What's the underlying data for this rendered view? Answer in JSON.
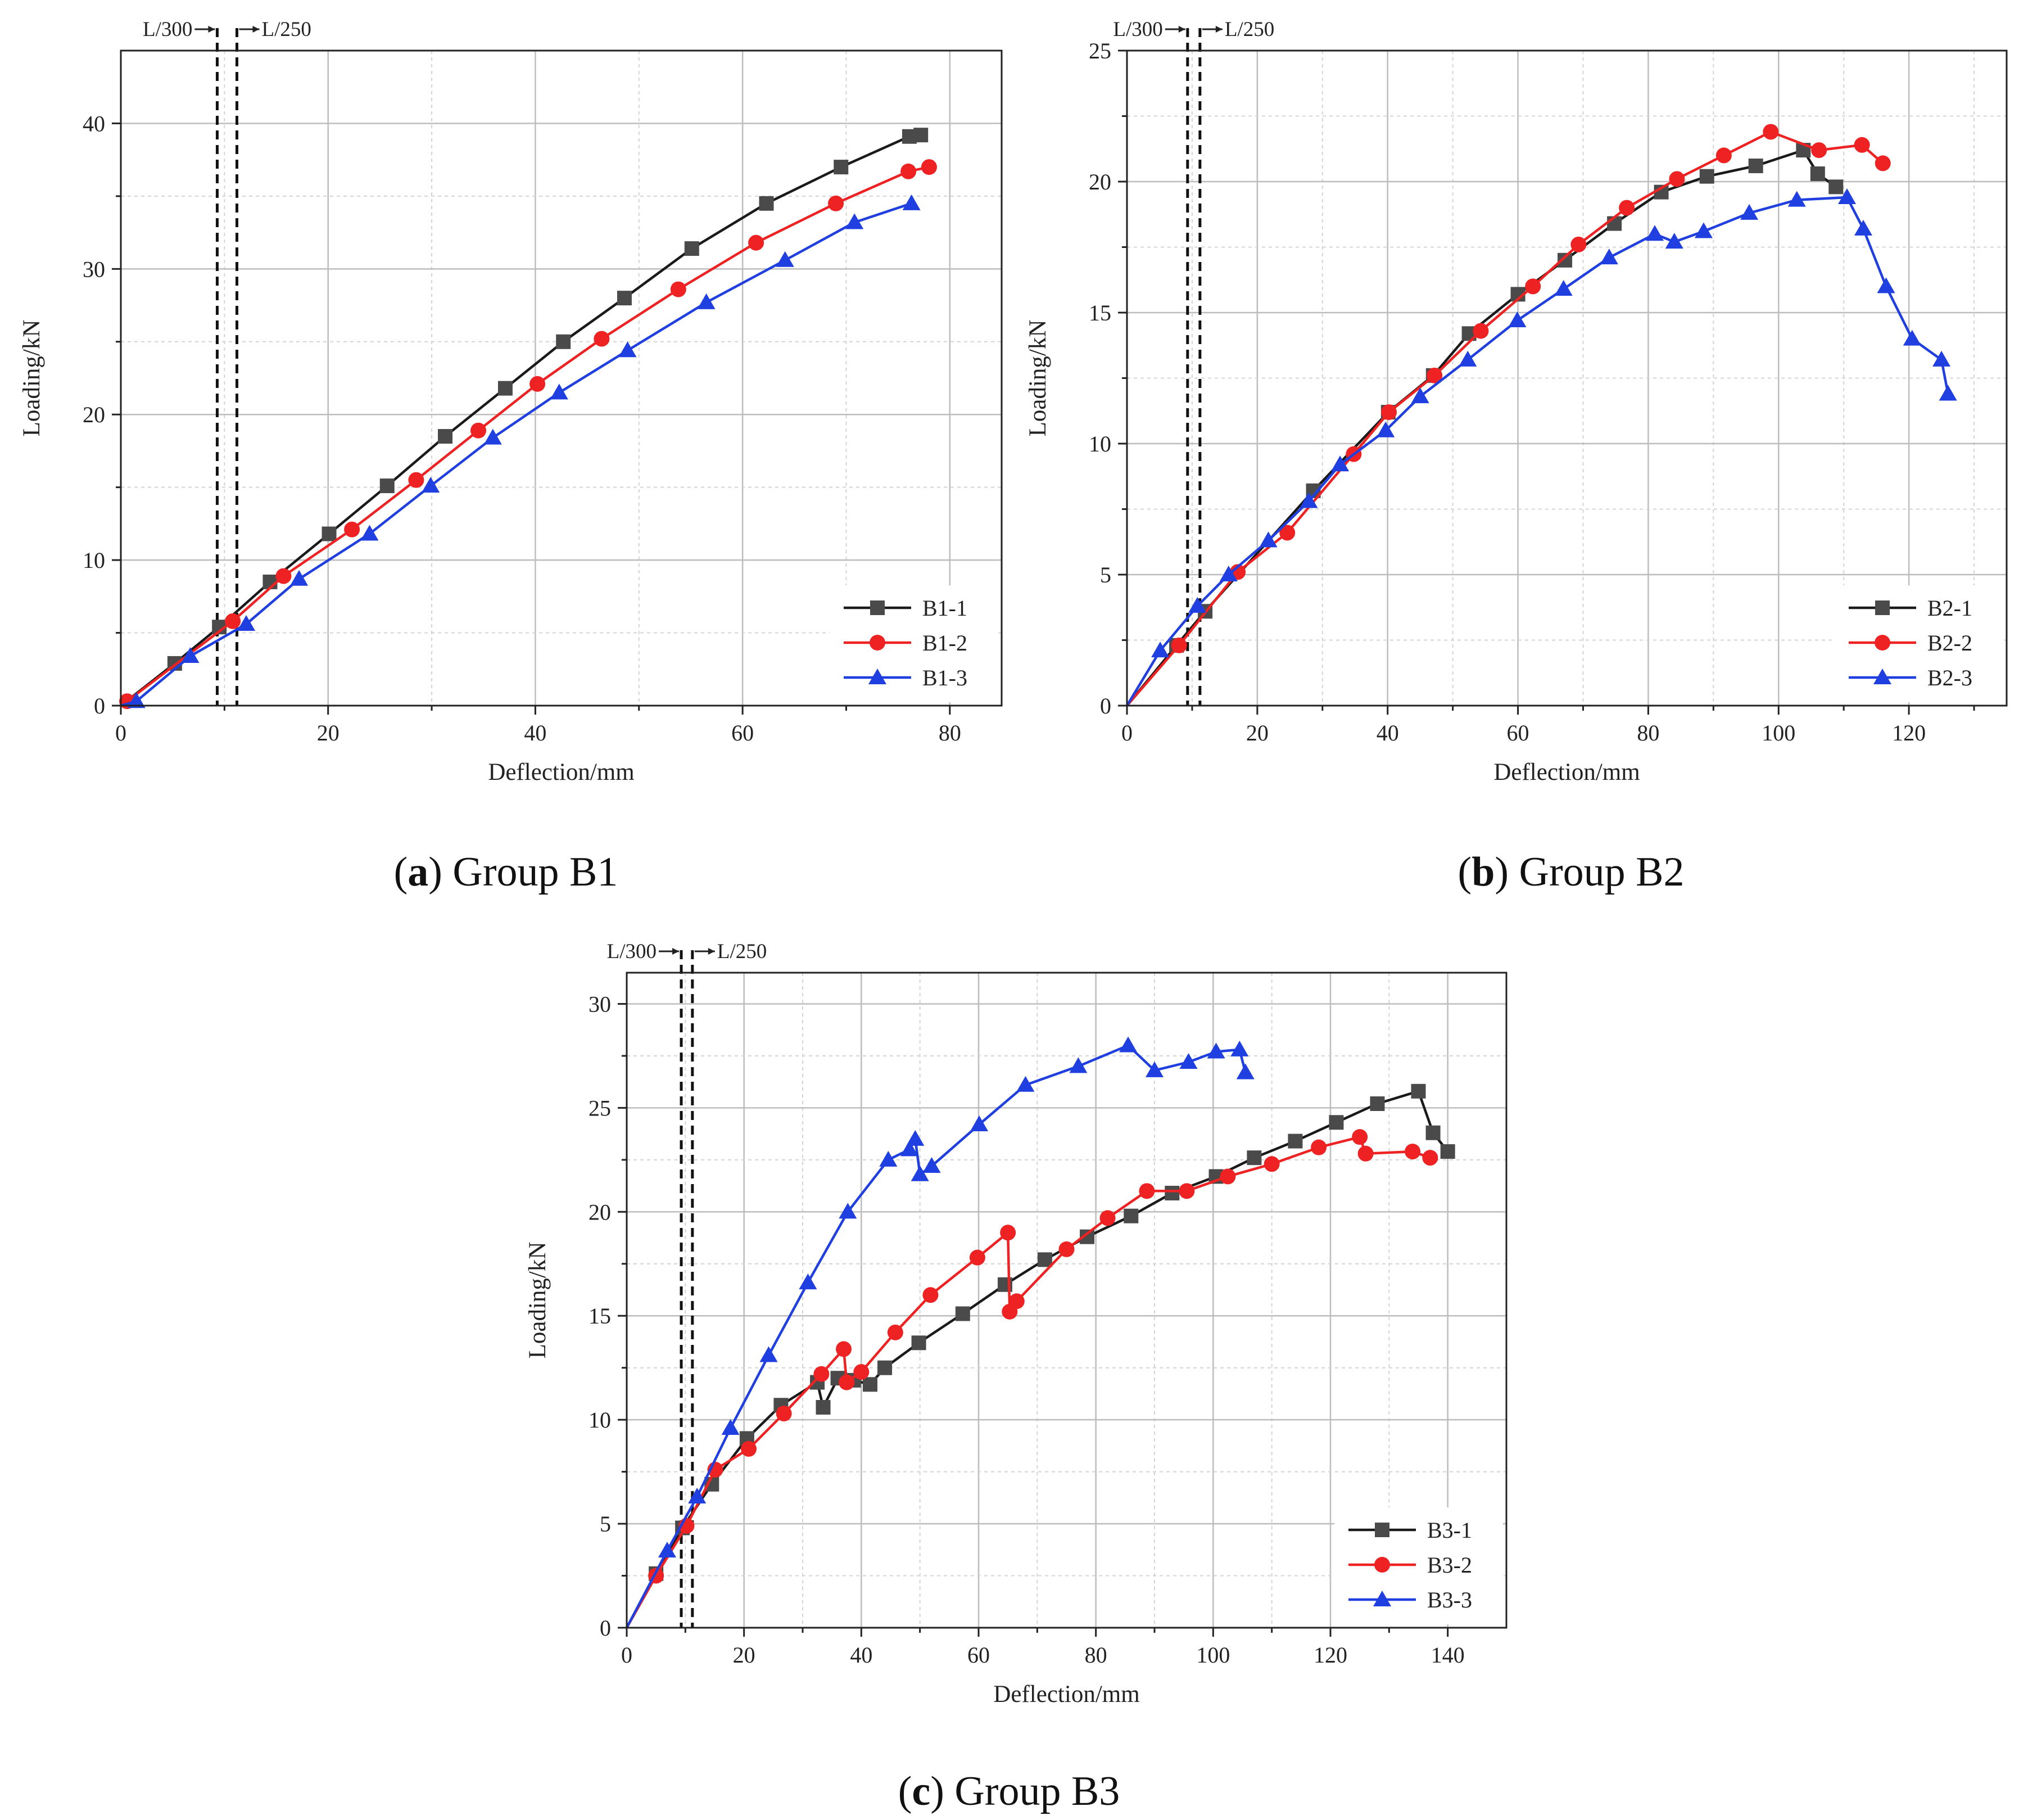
{
  "figure": {
    "colors": {
      "black": "#1a1a1a",
      "red": "#ee2222",
      "blue": "#1f3fe0",
      "marker_black": "#4a4a4a",
      "grid": "#bdbdbd"
    },
    "limit_labels": {
      "l300": "L/300",
      "l250": "L/250"
    },
    "marker_names": [
      "square",
      "circle",
      "triangle"
    ]
  },
  "chart_data": [
    {
      "type": "line",
      "id": "b1",
      "caption_letter": "a",
      "caption_text": " Group B1",
      "xlabel": "Deflection/mm",
      "ylabel": "Loading/kN",
      "xlim": [
        0,
        85
      ],
      "ylim": [
        0,
        45
      ],
      "xticks": [
        0,
        20,
        40,
        60,
        80
      ],
      "yticks": [
        0,
        10,
        20,
        30,
        40
      ],
      "grid": true,
      "legend_position": "bottom-right",
      "limit_lines": [
        9.3,
        11.2
      ],
      "series": [
        {
          "name": "B1-1",
          "color": "black",
          "marker": "square",
          "x": [
            0,
            5.2,
            9.5,
            14.4,
            20.1,
            25.7,
            31.3,
            37.1,
            42.7,
            48.6,
            55.1,
            62.3,
            69.5,
            76.1,
            77.2
          ],
          "y": [
            0,
            2.9,
            5.4,
            8.5,
            11.8,
            15.1,
            18.5,
            21.8,
            25.0,
            28.0,
            31.4,
            34.5,
            37.0,
            39.1,
            39.2
          ]
        },
        {
          "name": "B1-2",
          "color": "red",
          "marker": "circle",
          "x": [
            0,
            0.6,
            10.8,
            15.7,
            22.3,
            28.5,
            34.5,
            40.2,
            46.4,
            53.8,
            61.3,
            69.0,
            76.0,
            78.0
          ],
          "y": [
            0,
            0.3,
            5.8,
            8.9,
            12.1,
            15.5,
            18.9,
            22.1,
            25.2,
            28.6,
            31.8,
            34.5,
            36.7,
            37.0
          ]
        },
        {
          "name": "B1-3",
          "color": "blue",
          "marker": "triangle",
          "x": [
            0,
            1.5,
            6.7,
            12.1,
            17.2,
            24.0,
            29.9,
            35.9,
            42.3,
            48.9,
            56.5,
            64.1,
            70.8,
            76.3
          ],
          "y": [
            0,
            0.3,
            3.4,
            5.6,
            8.7,
            11.8,
            15.1,
            18.4,
            21.5,
            24.4,
            27.7,
            30.6,
            33.2,
            34.5
          ]
        }
      ]
    },
    {
      "type": "line",
      "id": "b2",
      "caption_letter": "b",
      "caption_text": " Group B2",
      "xlabel": "Deflection/mm",
      "ylabel": "Loading/kN",
      "xlim": [
        0,
        135
      ],
      "ylim": [
        0,
        25
      ],
      "xticks": [
        0,
        20,
        40,
        60,
        80,
        100,
        120
      ],
      "yticks": [
        0,
        5,
        10,
        15,
        20,
        25
      ],
      "grid": true,
      "legend_position": "bottom-right",
      "limit_lines": [
        9.3,
        11.2
      ],
      "series": [
        {
          "name": "B2-1",
          "color": "black",
          "marker": "square",
          "x": [
            0,
            7.6,
            12.0,
            28.6,
            40.1,
            47.0,
            52.5,
            60.0,
            67.2,
            74.8,
            82.0,
            89.0,
            96.5,
            103.8,
            106.0,
            108.8
          ],
          "y": [
            0,
            2.3,
            3.6,
            8.2,
            11.2,
            12.6,
            14.2,
            15.7,
            17.0,
            18.4,
            19.6,
            20.2,
            20.6,
            21.2,
            20.3,
            19.8
          ]
        },
        {
          "name": "B2-2",
          "color": "red",
          "marker": "circle",
          "x": [
            0,
            8.0,
            17.0,
            24.6,
            34.8,
            40.2,
            47.2,
            54.3,
            62.3,
            69.3,
            76.7,
            84.4,
            91.6,
            98.8,
            106.2,
            112.8,
            116.0
          ],
          "y": [
            0,
            2.3,
            5.1,
            6.6,
            9.6,
            11.2,
            12.6,
            14.3,
            16.0,
            17.6,
            19.0,
            20.1,
            21.0,
            21.9,
            21.2,
            21.4,
            20.7
          ]
        },
        {
          "name": "B2-3",
          "color": "blue",
          "marker": "triangle",
          "x": [
            0,
            5.1,
            10.8,
            15.6,
            21.7,
            27.9,
            32.7,
            39.7,
            45.0,
            52.3,
            59.9,
            67.0,
            74.0,
            81.0,
            84.0,
            88.5,
            95.5,
            102.8,
            110.5,
            113.0,
            116.5,
            120.5,
            125.0,
            126.0
          ],
          "y": [
            0,
            2.1,
            3.8,
            5.0,
            6.3,
            7.8,
            9.2,
            10.5,
            11.8,
            13.2,
            14.7,
            15.9,
            17.1,
            18.0,
            17.7,
            18.1,
            18.8,
            19.3,
            19.4,
            18.2,
            16.0,
            14.0,
            13.2,
            11.9
          ]
        }
      ]
    },
    {
      "type": "line",
      "id": "b3",
      "caption_letter": "c",
      "caption_text": " Group B3",
      "xlabel": "Deflection/mm",
      "ylabel": "Loading/kN",
      "xlim": [
        0,
        150
      ],
      "ylim": [
        0,
        31.5
      ],
      "xticks": [
        0,
        20,
        40,
        60,
        80,
        100,
        120,
        140
      ],
      "yticks": [
        0,
        5,
        10,
        15,
        20,
        25,
        30
      ],
      "grid": true,
      "legend_position": "bottom-right",
      "limit_lines": [
        9.3,
        11.2
      ],
      "series": [
        {
          "name": "B3-1",
          "color": "black",
          "marker": "square",
          "x": [
            0,
            5.0,
            9.5,
            14.5,
            20.5,
            26.3,
            32.5,
            33.5,
            36.0,
            38.7,
            41.5,
            44.0,
            49.8,
            57.3,
            64.5,
            71.3,
            78.5,
            86.0,
            93.0,
            100.5,
            107.0,
            114.0,
            121.0,
            128.0,
            135.0,
            137.5,
            140.0
          ],
          "y": [
            0,
            2.6,
            4.8,
            6.9,
            9.1,
            10.7,
            11.8,
            10.6,
            12.0,
            11.9,
            11.7,
            12.5,
            13.7,
            15.1,
            16.5,
            17.7,
            18.8,
            19.8,
            20.9,
            21.7,
            22.6,
            23.4,
            24.3,
            25.2,
            25.8,
            23.8,
            22.9
          ]
        },
        {
          "name": "B3-2",
          "color": "red",
          "marker": "circle",
          "x": [
            0,
            5.0,
            10.2,
            15.1,
            20.8,
            26.8,
            33.2,
            37.0,
            37.5,
            40.0,
            45.8,
            51.8,
            59.8,
            65.0,
            65.3,
            66.5,
            75.0,
            82.0,
            88.7,
            95.5,
            102.5,
            110.0,
            118.0,
            125.0,
            126.0,
            134.0,
            137.0
          ],
          "y": [
            0,
            2.5,
            4.9,
            7.6,
            8.6,
            10.3,
            12.2,
            13.4,
            11.8,
            12.3,
            14.2,
            16.0,
            17.8,
            19.0,
            15.2,
            15.7,
            18.2,
            19.7,
            21.0,
            21.0,
            21.7,
            22.3,
            23.1,
            23.6,
            22.8,
            22.9,
            22.6
          ]
        },
        {
          "name": "B3-3",
          "color": "blue",
          "marker": "triangle",
          "x": [
            0,
            6.9,
            12.0,
            17.7,
            24.2,
            30.9,
            37.7,
            44.6,
            48.2,
            49.2,
            50.0,
            52.0,
            60.1,
            68.0,
            77.0,
            85.5,
            90.0,
            95.8,
            100.5,
            104.5,
            105.5
          ],
          "y": [
            0,
            3.7,
            6.3,
            9.6,
            13.1,
            16.6,
            20.0,
            22.5,
            23.0,
            23.5,
            21.8,
            22.2,
            24.2,
            26.1,
            27.0,
            28.0,
            26.8,
            27.2,
            27.7,
            27.8,
            26.7
          ]
        }
      ]
    }
  ]
}
